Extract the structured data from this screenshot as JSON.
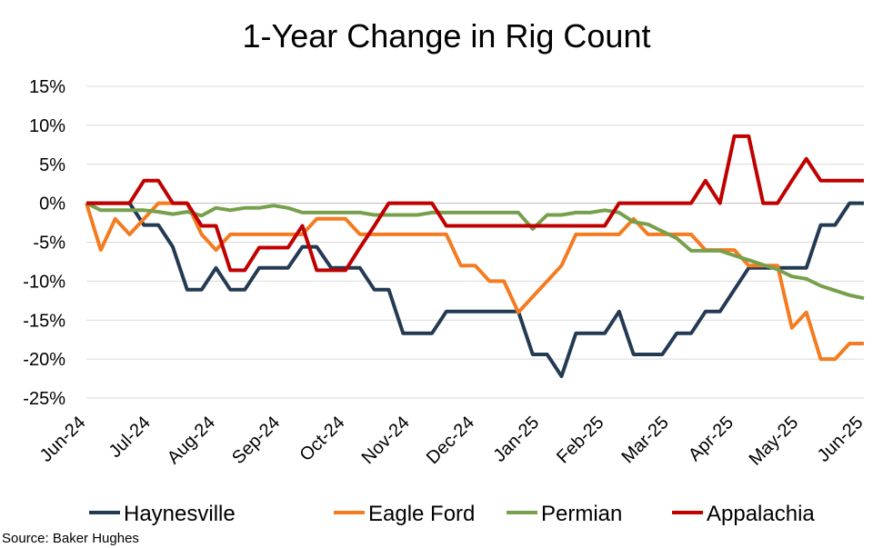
{
  "chart_data": {
    "type": "line",
    "title": "1-Year Change in Rig Count",
    "xlabel": "",
    "ylabel": "",
    "ylim": [
      -25,
      15
    ],
    "y_ticks": [
      "15%",
      "10%",
      "5%",
      "0%",
      "-5%",
      "-10%",
      "-15%",
      "-20%",
      "-25%"
    ],
    "y_tick_values": [
      15,
      10,
      5,
      0,
      -5,
      -10,
      -15,
      -20,
      -25
    ],
    "x_ticks": [
      "Jun-24",
      "Jul-24",
      "Aug-24",
      "Sep-24",
      "Oct-24",
      "Nov-24",
      "Dec-24",
      "Jan-25",
      "Feb-25",
      "Mar-25",
      "Apr-25",
      "May-25",
      "Jun-25"
    ],
    "x_count": 55,
    "grid": "horizontal",
    "legend": "bottom",
    "series": [
      {
        "name": "Haynesville",
        "color": "#243a53",
        "values": [
          0,
          0,
          0,
          0,
          -2.8,
          -2.8,
          -5.6,
          -11.1,
          -11.1,
          -8.3,
          -11.1,
          -11.1,
          -8.3,
          -8.3,
          -8.3,
          -5.6,
          -5.6,
          -8.3,
          -8.3,
          -8.3,
          -11.1,
          -11.1,
          -16.7,
          -16.7,
          -16.7,
          -13.9,
          -13.9,
          -13.9,
          -13.9,
          -13.9,
          -13.9,
          -19.4,
          -19.4,
          -22.2,
          -16.7,
          -16.7,
          -16.7,
          -13.9,
          -19.4,
          -19.4,
          -19.4,
          -16.7,
          -16.7,
          -13.9,
          -13.9,
          -11.1,
          -8.3,
          -8.3,
          -8.3,
          -8.3,
          -8.3,
          -2.8,
          -2.8,
          0,
          0
        ]
      },
      {
        "name": "Eagle Ford",
        "color": "#f47b20",
        "values": [
          0,
          -6,
          -2,
          -4,
          -2,
          0,
          0,
          0,
          -4,
          -6,
          -4,
          -4,
          -4,
          -4,
          -4,
          -4,
          -2,
          -2,
          -2,
          -4,
          -4,
          -4,
          -4,
          -4,
          -4,
          -4,
          -8,
          -8,
          -10,
          -10,
          -14,
          -12,
          -10,
          -8,
          -4,
          -4,
          -4,
          -4,
          -2,
          -4,
          -4,
          -4,
          -4,
          -6,
          -6,
          -6,
          -8,
          -8,
          -8,
          -16,
          -14,
          -20,
          -20,
          -18,
          -18
        ]
      },
      {
        "name": "Permian",
        "color": "#76a04b",
        "values": [
          0,
          -0.9,
          -0.9,
          -0.9,
          -0.9,
          -1.1,
          -1.4,
          -1.1,
          -1.6,
          -0.6,
          -0.9,
          -0.6,
          -0.6,
          -0.3,
          -0.6,
          -1.2,
          -1.2,
          -1.2,
          -1.2,
          -1.2,
          -1.5,
          -1.5,
          -1.5,
          -1.5,
          -1.2,
          -1.2,
          -1.2,
          -1.2,
          -1.2,
          -1.2,
          -1.2,
          -3.3,
          -1.5,
          -1.5,
          -1.2,
          -1.2,
          -0.9,
          -1.2,
          -2.4,
          -2.7,
          -3.6,
          -4.5,
          -6.1,
          -6.1,
          -6.1,
          -6.7,
          -7.3,
          -7.9,
          -8.5,
          -9.4,
          -9.7,
          -10.6,
          -11.2,
          -11.8,
          -12.2
        ]
      },
      {
        "name": "Appalachia",
        "color": "#c00000",
        "values": [
          0,
          0,
          0,
          0,
          2.9,
          2.9,
          0,
          0,
          -2.9,
          -2.9,
          -8.6,
          -8.6,
          -5.7,
          -5.7,
          -5.7,
          -2.9,
          -8.6,
          -8.6,
          -8.6,
          -5.7,
          -2.9,
          0,
          0,
          0,
          0,
          -2.9,
          -2.9,
          -2.9,
          -2.9,
          -2.9,
          -2.9,
          -2.9,
          -2.9,
          -2.9,
          -2.9,
          -2.9,
          -2.9,
          0,
          0,
          0,
          0,
          0,
          0,
          2.9,
          0,
          8.6,
          8.6,
          0,
          0,
          2.9,
          5.7,
          2.9,
          2.9,
          2.9,
          2.9
        ]
      }
    ]
  },
  "source_text": "Source: Baker Hughes"
}
